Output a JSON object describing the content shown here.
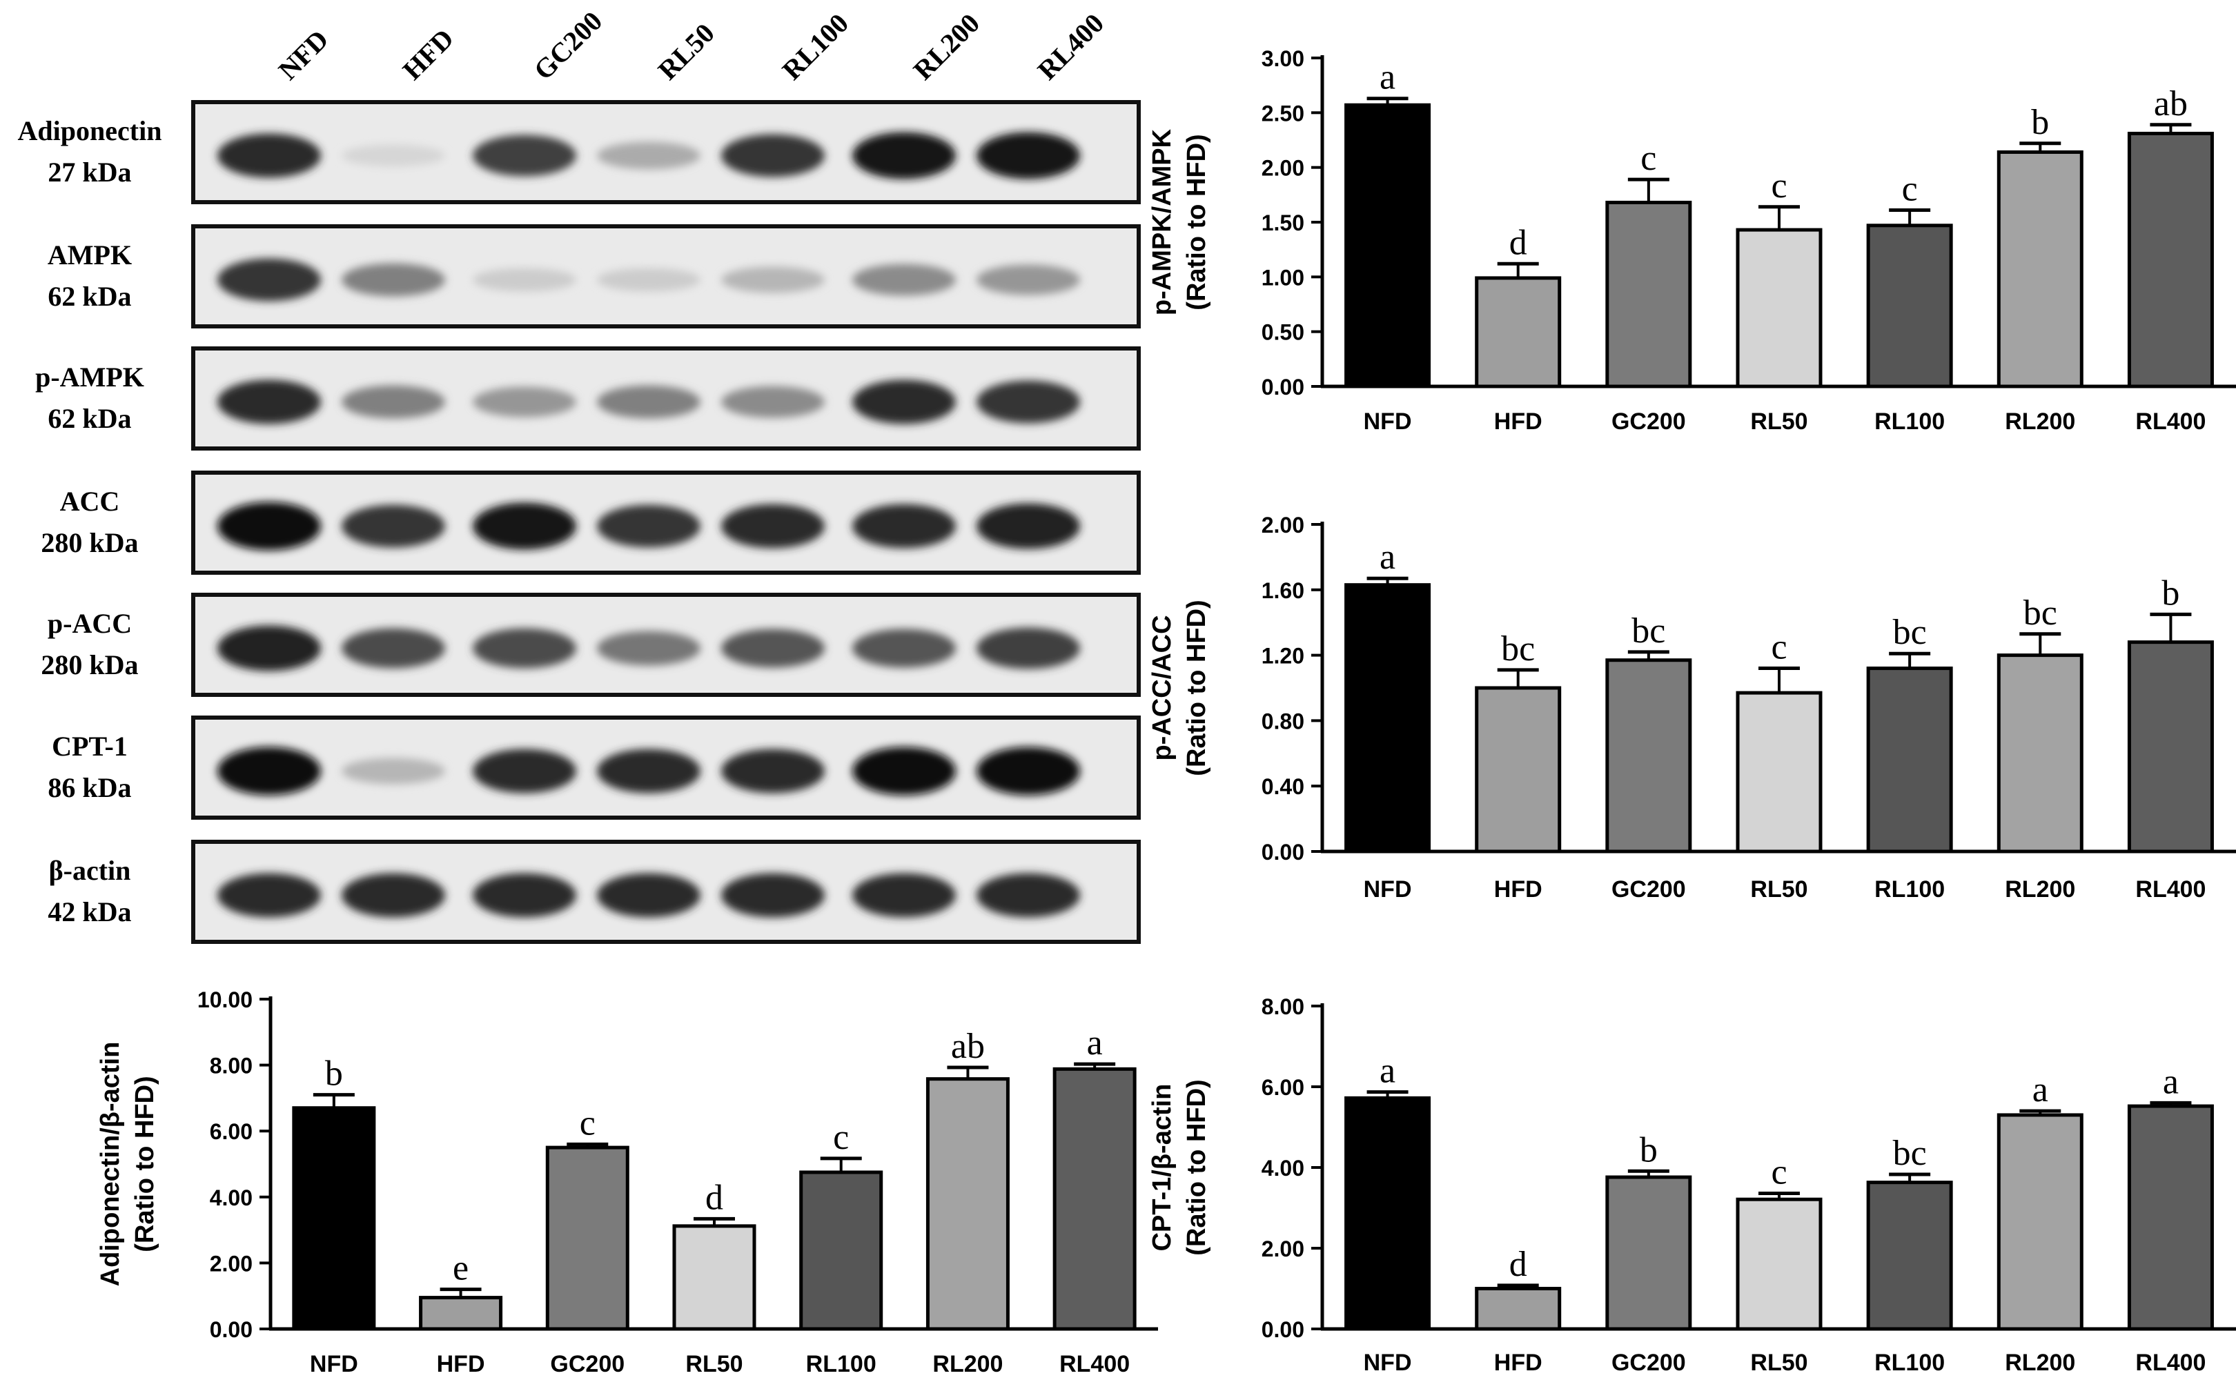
{
  "blot": {
    "lanes": [
      "NFD",
      "HFD",
      "GC200",
      "RL50",
      "RL100",
      "RL200",
      "RL400"
    ],
    "rows": [
      {
        "name": "Adiponectin",
        "kda": "27 kDa",
        "intensity": [
          0.85,
          0.05,
          0.75,
          0.25,
          0.8,
          0.95,
          0.95
        ]
      },
      {
        "name": "AMPK",
        "kda": "62 kDa",
        "intensity": [
          0.8,
          0.45,
          0.1,
          0.1,
          0.2,
          0.4,
          0.35
        ]
      },
      {
        "name": "p-AMPK",
        "kda": "62 kDa",
        "intensity": [
          0.85,
          0.45,
          0.35,
          0.45,
          0.4,
          0.85,
          0.8
        ]
      },
      {
        "name": "ACC",
        "kda": "280 kDa",
        "intensity": [
          1.0,
          0.8,
          0.95,
          0.8,
          0.85,
          0.85,
          0.9
        ]
      },
      {
        "name": "p-ACC",
        "kda": "280 kDa",
        "intensity": [
          0.9,
          0.7,
          0.7,
          0.5,
          0.65,
          0.65,
          0.75
        ]
      },
      {
        "name": "CPT-1",
        "kda": "86 kDa",
        "intensity": [
          1.0,
          0.2,
          0.85,
          0.85,
          0.85,
          1.0,
          1.0
        ]
      },
      {
        "name": "β-actin",
        "kda": "42 kDa",
        "intensity": [
          0.85,
          0.85,
          0.85,
          0.85,
          0.85,
          0.85,
          0.85
        ]
      }
    ]
  },
  "colors": [
    "#000000",
    "#9e9e9e",
    "#7b7b7b",
    "#d4d4d4",
    "#565656",
    "#a3a3a3",
    "#5e5e5e"
  ],
  "chart_data": [
    {
      "id": "ampk",
      "type": "bar",
      "categories": [
        "NFD",
        "HFD",
        "GC200",
        "RL50",
        "RL100",
        "RL200",
        "RL400"
      ],
      "values": [
        2.57,
        0.99,
        1.68,
        1.43,
        1.47,
        2.14,
        2.31
      ],
      "errors": [
        0.06,
        0.13,
        0.21,
        0.21,
        0.14,
        0.08,
        0.08
      ],
      "labels": [
        "a",
        "d",
        "c",
        "c",
        "c",
        "b",
        "ab"
      ],
      "ylabel": [
        "p-AMPK/AMPK",
        "(Ratio to HFD)"
      ],
      "ylim": [
        0,
        3.0
      ],
      "yticks": [
        "0.00",
        "0.50",
        "1.00",
        "1.50",
        "2.00",
        "2.50",
        "3.00"
      ]
    },
    {
      "id": "acc",
      "type": "bar",
      "categories": [
        "NFD",
        "HFD",
        "GC200",
        "RL50",
        "RL100",
        "RL200",
        "RL400"
      ],
      "values": [
        1.63,
        1.0,
        1.17,
        0.97,
        1.12,
        1.2,
        1.28
      ],
      "errors": [
        0.04,
        0.11,
        0.05,
        0.15,
        0.09,
        0.13,
        0.17
      ],
      "labels": [
        "a",
        "bc",
        "bc",
        "c",
        "bc",
        "bc",
        "b"
      ],
      "ylabel": [
        "p-ACC/ACC",
        "(Ratio to HFD)"
      ],
      "ylim": [
        0,
        2.0
      ],
      "yticks": [
        "0.00",
        "0.40",
        "0.80",
        "1.20",
        "1.60",
        "2.00"
      ]
    },
    {
      "id": "adipo",
      "type": "bar",
      "categories": [
        "NFD",
        "HFD",
        "GC200",
        "RL50",
        "RL100",
        "RL200",
        "RL400"
      ],
      "values": [
        6.7,
        0.95,
        5.5,
        3.12,
        4.75,
        7.58,
        7.88
      ],
      "errors": [
        0.4,
        0.25,
        0.1,
        0.22,
        0.42,
        0.35,
        0.15
      ],
      "labels": [
        "b",
        "e",
        "c",
        "d",
        "c",
        "ab",
        "a"
      ],
      "ylabel": [
        "Adiponectin/β-actin",
        "(Ratio to HFD)"
      ],
      "ylim": [
        0,
        10.0
      ],
      "yticks": [
        "0.00",
        "2.00",
        "4.00",
        "6.00",
        "8.00",
        "10.00"
      ]
    },
    {
      "id": "cpt",
      "type": "bar",
      "categories": [
        "NFD",
        "HFD",
        "GC200",
        "RL50",
        "RL100",
        "RL200",
        "RL400"
      ],
      "values": [
        5.72,
        1.0,
        3.76,
        3.21,
        3.63,
        5.3,
        5.52
      ],
      "errors": [
        0.15,
        0.08,
        0.15,
        0.15,
        0.2,
        0.1,
        0.08
      ],
      "labels": [
        "a",
        "d",
        "b",
        "c",
        "bc",
        "a",
        "a"
      ],
      "ylabel": [
        "CPT-1/β-actin",
        "(Ratio to  HFD)"
      ],
      "ylim": [
        0,
        8.0
      ],
      "yticks": [
        "0.00",
        "2.00",
        "4.00",
        "6.00",
        "8.00"
      ]
    }
  ]
}
